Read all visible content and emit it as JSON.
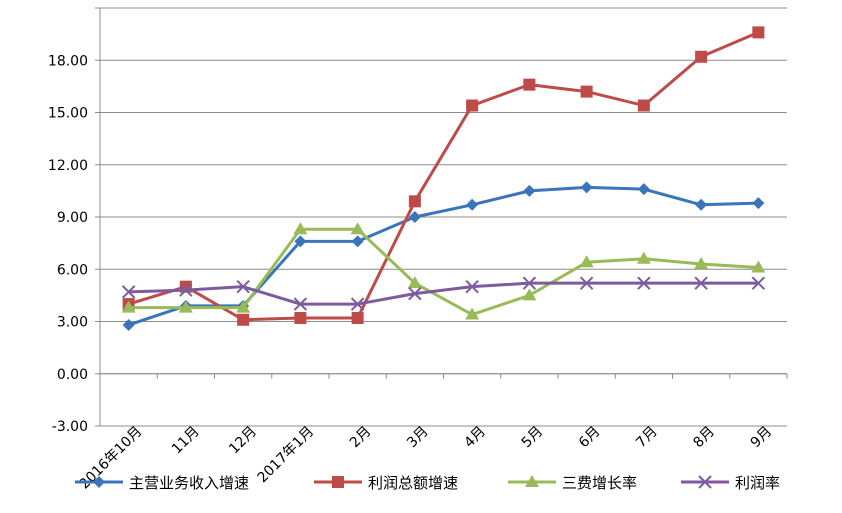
{
  "chart_data": {
    "type": "line",
    "categories": [
      "2016年10月",
      "11月",
      "12月",
      "2017年1月",
      "2月",
      "3月",
      "4月",
      "5月",
      "6月",
      "7月",
      "8月",
      "9月"
    ],
    "ylim": [
      -3,
      21
    ],
    "yticks": [
      "-3.00",
      "0.00",
      "3.00",
      "6.00",
      "9.00",
      "12.00",
      "15.00",
      "18.00"
    ],
    "ytick_values": [
      -3,
      0,
      3,
      6,
      9,
      12,
      15,
      18
    ],
    "grid": true,
    "legend_position": "bottom",
    "series": [
      {
        "name": "主营业务收入增速",
        "color": "#3A75BB",
        "marker": "diamond",
        "values": [
          2.8,
          3.9,
          3.9,
          7.6,
          7.6,
          9.0,
          9.7,
          10.5,
          10.7,
          10.6,
          9.7,
          9.8
        ]
      },
      {
        "name": "利润总额增速",
        "color": "#BE4B48",
        "marker": "square",
        "values": [
          4.0,
          5.0,
          3.1,
          3.2,
          3.2,
          9.9,
          15.4,
          16.6,
          16.2,
          15.4,
          18.2,
          19.6
        ]
      },
      {
        "name": "三费增长率",
        "color": "#98BA57",
        "marker": "triangle",
        "values": [
          3.8,
          3.8,
          3.8,
          8.3,
          8.3,
          5.2,
          3.4,
          4.5,
          6.4,
          6.6,
          6.3,
          6.1
        ]
      },
      {
        "name": "利润率",
        "color": "#7D5B9E",
        "marker": "x",
        "values": [
          4.7,
          4.8,
          5.0,
          4.0,
          4.0,
          4.6,
          5.0,
          5.2,
          5.2,
          5.2,
          5.2,
          5.2
        ]
      }
    ]
  }
}
